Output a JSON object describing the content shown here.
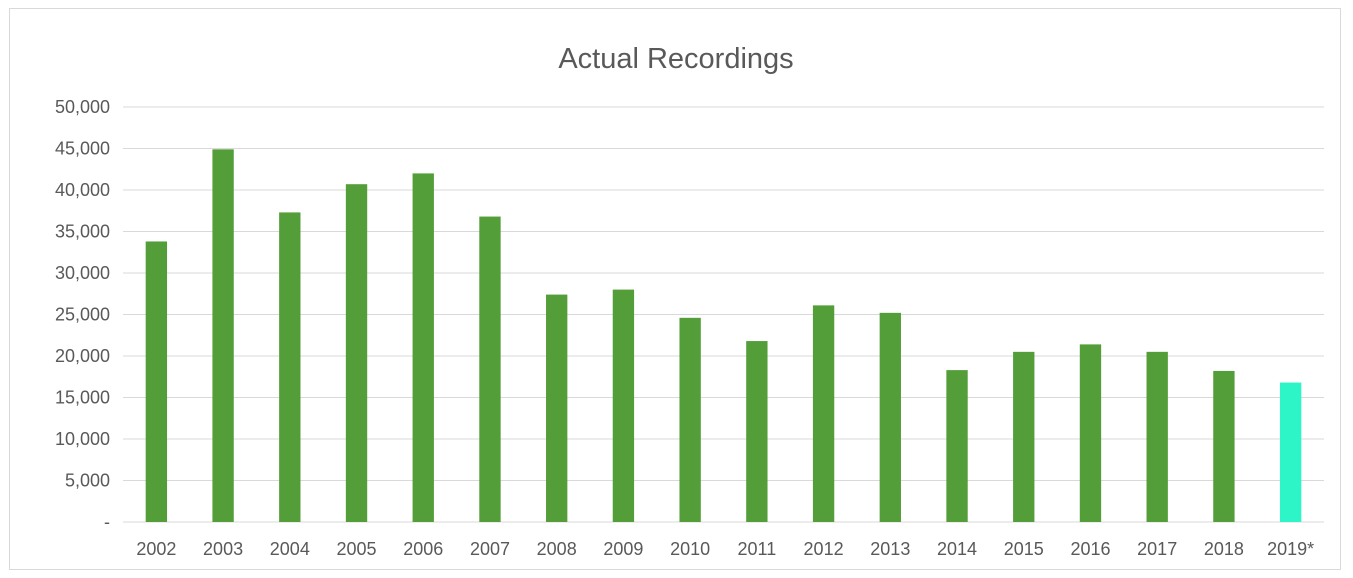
{
  "chart_data": {
    "type": "bar",
    "title": "Actual Recordings",
    "categories": [
      "2002",
      "2003",
      "2004",
      "2005",
      "2006",
      "2007",
      "2008",
      "2009",
      "2010",
      "2011",
      "2012",
      "2013",
      "2014",
      "2015",
      "2016",
      "2017",
      "2018",
      "2019*"
    ],
    "values": [
      33800,
      44900,
      37300,
      40700,
      42000,
      36800,
      27400,
      28000,
      24600,
      21800,
      26100,
      25200,
      18300,
      20500,
      21400,
      20500,
      18200,
      16800
    ],
    "ylim": [
      0,
      50000
    ],
    "ytick_labels": [
      "-",
      "5,000",
      "10,000",
      "15,000",
      "20,000",
      "25,000",
      "30,000",
      "35,000",
      "40,000",
      "45,000",
      "50,000"
    ],
    "ytick_values": [
      0,
      5000,
      10000,
      15000,
      20000,
      25000,
      30000,
      35000,
      40000,
      45000,
      50000
    ],
    "grid": true,
    "legend": false,
    "colors": {
      "bar": "#549e39",
      "highlight_bar": "#2ef5c8",
      "highlight_category": "2019*",
      "gridline": "#d9d9d9",
      "text": "#595959"
    }
  }
}
